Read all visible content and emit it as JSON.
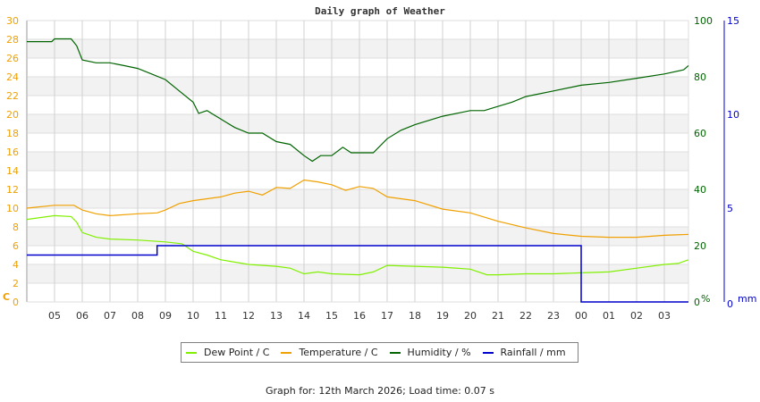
{
  "chart_data": {
    "type": "line",
    "title": "Daily graph of Weather",
    "xlabel": "",
    "x_ticks": [
      "05",
      "06",
      "07",
      "08",
      "09",
      "10",
      "11",
      "12",
      "13",
      "14",
      "15",
      "16",
      "17",
      "18",
      "19",
      "20",
      "21",
      "22",
      "23",
      "00",
      "01",
      "02",
      "03"
    ],
    "x_range_hours": [
      4,
      27.87
    ],
    "axes": {
      "left": {
        "label": "C",
        "ylim": [
          0,
          30
        ],
        "ticks": [
          0,
          2,
          4,
          6,
          8,
          10,
          12,
          14,
          16,
          18,
          20,
          22,
          24,
          26,
          28,
          30
        ],
        "color": "#f0a000"
      },
      "humidity": {
        "label": "%",
        "ylim": [
          0,
          100
        ],
        "ticks": [
          0,
          20,
          40,
          60,
          80,
          100
        ],
        "color": "#006400"
      },
      "rainfall": {
        "label": "mm",
        "ylim": [
          0,
          15
        ],
        "ticks": [
          0,
          5,
          10,
          15
        ],
        "color": "#0000cc"
      }
    },
    "grid": true,
    "legend_position": "bottom",
    "series": [
      {
        "name": "Dew Point / C",
        "axis": "left",
        "color": "#80f000",
        "x": [
          4,
          5,
          5.6,
          5.8,
          6,
          6.5,
          7,
          8,
          9,
          9.6,
          10,
          10.5,
          11,
          12,
          13,
          13.5,
          14,
          14.5,
          15,
          16,
          16.5,
          17,
          18,
          19,
          20,
          20.6,
          21,
          22,
          23,
          24,
          25,
          26,
          27,
          27.5,
          27.87
        ],
        "y": [
          8.8,
          9.2,
          9.1,
          8.5,
          7.4,
          6.9,
          6.7,
          6.6,
          6.4,
          6.2,
          5.4,
          5.0,
          4.5,
          4.0,
          3.8,
          3.6,
          3.0,
          3.2,
          3.0,
          2.9,
          3.2,
          3.9,
          3.8,
          3.7,
          3.5,
          2.9,
          2.9,
          3.0,
          3.0,
          3.1,
          3.2,
          3.6,
          4.0,
          4.1,
          4.5
        ]
      },
      {
        "name": "Temperature / C",
        "axis": "left",
        "color": "#f0a000",
        "x": [
          4,
          5,
          5.7,
          6,
          6.5,
          7,
          8,
          8.7,
          9,
          9.5,
          10,
          10.5,
          11,
          11.5,
          12,
          12.5,
          13,
          13.5,
          14,
          14.5,
          15,
          15.5,
          16,
          16.5,
          17,
          17.5,
          18,
          19,
          20,
          21,
          22,
          23,
          24,
          25,
          26,
          27,
          27.87
        ],
        "y": [
          10,
          10.3,
          10.3,
          9.8,
          9.4,
          9.2,
          9.4,
          9.5,
          9.8,
          10.5,
          10.8,
          11.0,
          11.2,
          11.6,
          11.8,
          11.4,
          12.2,
          12.1,
          13.0,
          12.8,
          12.5,
          11.9,
          12.3,
          12.1,
          11.2,
          11.0,
          10.8,
          9.9,
          9.5,
          8.6,
          7.9,
          7.3,
          7.0,
          6.9,
          6.9,
          7.1,
          7.2
        ]
      },
      {
        "name": "Humidity / %",
        "axis": "humidity",
        "color": "#006400",
        "x": [
          4,
          4.9,
          5,
          5.6,
          5.8,
          6,
          6.5,
          7,
          7.5,
          8,
          8.5,
          9,
          9.5,
          10,
          10.2,
          10.5,
          11,
          11.5,
          12,
          12.5,
          13,
          13.5,
          14,
          14.3,
          14.6,
          15,
          15.4,
          15.7,
          16,
          16.5,
          17,
          17.5,
          18,
          19,
          20,
          20.5,
          21,
          21.5,
          22,
          23,
          24,
          25,
          26,
          27,
          27.7,
          27.87
        ],
        "y": [
          92.5,
          92.5,
          93.5,
          93.5,
          91,
          86,
          85,
          85,
          84,
          83,
          81,
          79,
          75,
          71,
          67,
          68,
          65,
          62,
          60,
          60,
          57,
          56,
          52,
          50,
          52,
          52,
          55,
          53,
          53,
          53,
          58,
          61,
          63,
          66,
          68,
          68,
          69.5,
          71,
          73,
          75,
          77,
          78,
          79.5,
          81,
          82.5,
          84
        ]
      },
      {
        "name": "Rainfall / mm",
        "axis": "rainfall",
        "color": "#0000cc",
        "x": [
          4,
          8.7,
          8.7,
          24,
          24,
          27.87
        ],
        "y": [
          2.5,
          2.5,
          3.0,
          3.0,
          0,
          0
        ]
      }
    ]
  },
  "legend": {
    "items": [
      {
        "label": "Dew Point / C",
        "color": "#80f000"
      },
      {
        "label": "Temperature / C",
        "color": "#f0a000"
      },
      {
        "label": "Humidity / %",
        "color": "#006400"
      },
      {
        "label": "Rainfall / mm",
        "color": "#0000cc"
      }
    ]
  },
  "footer": {
    "text": "Graph for: 12th March 2026; Load time: 0.07 s"
  }
}
